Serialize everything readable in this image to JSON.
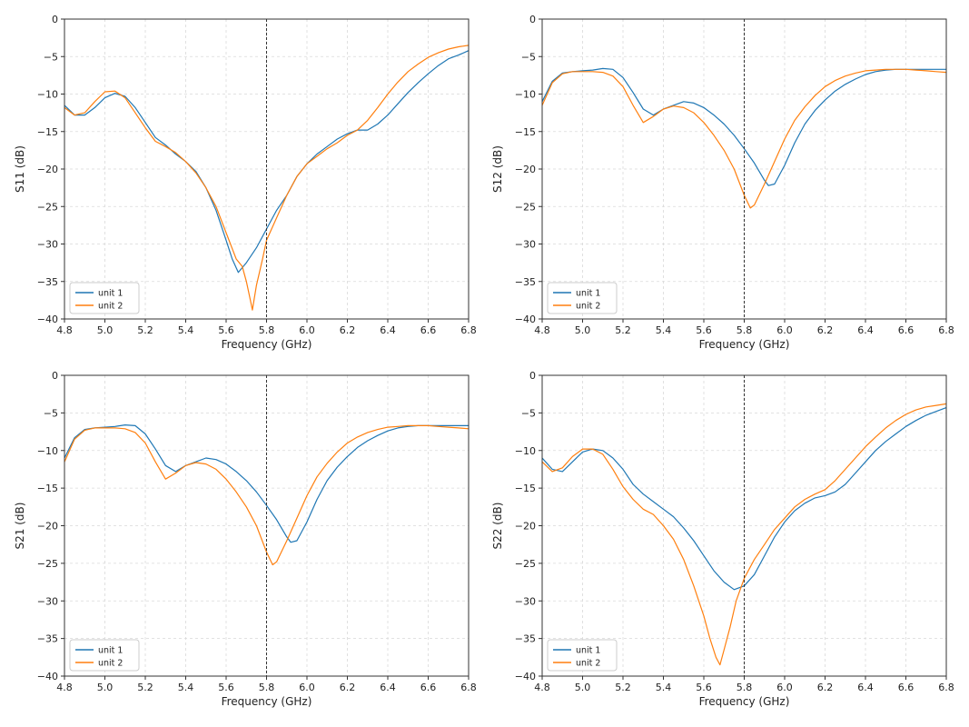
{
  "chart_data": [
    {
      "type": "line",
      "xlabel": "Frequency (GHz)",
      "ylabel": "S11 (dB)",
      "xlim": [
        4.8,
        6.8
      ],
      "ylim": [
        -40,
        0
      ],
      "xticks": [
        4.8,
        5.0,
        5.2,
        5.4,
        5.6,
        5.8,
        6.0,
        6.2,
        6.4,
        6.6,
        6.8
      ],
      "yticks": [
        0,
        -5,
        -10,
        -15,
        -20,
        -25,
        -30,
        -35,
        -40
      ],
      "xtick_labels": [
        "4.8",
        "5.0",
        "5.2",
        "5.4",
        "5.6",
        "5.8",
        "6.0",
        "6.2",
        "6.4",
        "6.6",
        "6.8"
      ],
      "ytick_labels": [
        "0",
        "−5",
        "−10",
        "−15",
        "−20",
        "−25",
        "−30",
        "−35",
        "−40"
      ],
      "grid": true,
      "vline": 5.8,
      "legend_position": "lower-left",
      "series": [
        {
          "name": "unit 1",
          "color": "#1f77b4",
          "x": [
            4.8,
            4.85,
            4.9,
            4.95,
            5.0,
            5.05,
            5.1,
            5.15,
            5.2,
            5.25,
            5.3,
            5.35,
            5.4,
            5.45,
            5.5,
            5.55,
            5.6,
            5.63,
            5.66,
            5.7,
            5.75,
            5.8,
            5.85,
            5.9,
            5.95,
            6.0,
            6.05,
            6.1,
            6.15,
            6.2,
            6.25,
            6.3,
            6.35,
            6.4,
            6.45,
            6.5,
            6.55,
            6.6,
            6.65,
            6.7,
            6.75,
            6.8
          ],
          "y": [
            -11.5,
            -12.8,
            -12.8,
            -11.8,
            -10.5,
            -9.9,
            -10.3,
            -11.8,
            -13.8,
            -15.8,
            -16.8,
            -18.0,
            -19.0,
            -20.3,
            -22.5,
            -25.5,
            -29.5,
            -32.0,
            -33.8,
            -32.5,
            -30.5,
            -28.0,
            -25.5,
            -23.5,
            -21.0,
            -19.3,
            -18.0,
            -17.0,
            -16.0,
            -15.3,
            -14.8,
            -14.8,
            -14.0,
            -12.8,
            -11.3,
            -9.8,
            -8.5,
            -7.3,
            -6.2,
            -5.3,
            -4.8,
            -4.2
          ]
        },
        {
          "name": "unit 2",
          "color": "#ff7f0e",
          "x": [
            4.8,
            4.85,
            4.9,
            4.95,
            5.0,
            5.05,
            5.1,
            5.15,
            5.2,
            5.25,
            5.3,
            5.35,
            5.4,
            5.45,
            5.5,
            5.55,
            5.6,
            5.65,
            5.68,
            5.7,
            5.72,
            5.73,
            5.75,
            5.78,
            5.8,
            5.85,
            5.9,
            5.95,
            6.0,
            6.05,
            6.1,
            6.15,
            6.2,
            6.25,
            6.3,
            6.35,
            6.4,
            6.45,
            6.5,
            6.55,
            6.6,
            6.65,
            6.7,
            6.75,
            6.8
          ],
          "y": [
            -11.8,
            -12.8,
            -12.5,
            -11.0,
            -9.7,
            -9.6,
            -10.5,
            -12.5,
            -14.5,
            -16.3,
            -17.0,
            -17.8,
            -19.0,
            -20.5,
            -22.5,
            -25.0,
            -28.5,
            -32.0,
            -33.0,
            -35.0,
            -37.5,
            -38.8,
            -35.5,
            -32.0,
            -29.5,
            -26.5,
            -23.5,
            -21.0,
            -19.3,
            -18.3,
            -17.3,
            -16.5,
            -15.5,
            -14.8,
            -13.5,
            -11.8,
            -10.0,
            -8.4,
            -7.0,
            -6.0,
            -5.1,
            -4.5,
            -4.0,
            -3.7,
            -3.5
          ]
        }
      ]
    },
    {
      "type": "line",
      "xlabel": "Frequency (GHz)",
      "ylabel": "S12 (dB)",
      "xlim": [
        4.8,
        6.8
      ],
      "ylim": [
        -40,
        0
      ],
      "xticks": [
        4.8,
        5.0,
        5.2,
        5.4,
        5.6,
        5.8,
        6.0,
        6.2,
        6.4,
        6.6,
        6.8
      ],
      "yticks": [
        0,
        -5,
        -10,
        -15,
        -20,
        -25,
        -30,
        -35,
        -40
      ],
      "xtick_labels": [
        "4.8",
        "5.0",
        "5.2",
        "5.4",
        "5.6",
        "5.8",
        "6.0",
        "6.2",
        "6.4",
        "6.6",
        "6.8"
      ],
      "ytick_labels": [
        "0",
        "−5",
        "−10",
        "−15",
        "−20",
        "−25",
        "−30",
        "−35",
        "−40"
      ],
      "grid": true,
      "vline": 5.8,
      "legend_position": "lower-left",
      "series": [
        {
          "name": "unit 1",
          "color": "#1f77b4",
          "x": [
            4.8,
            4.85,
            4.9,
            4.95,
            5.0,
            5.05,
            5.1,
            5.15,
            5.2,
            5.25,
            5.3,
            5.35,
            5.4,
            5.45,
            5.5,
            5.55,
            5.6,
            5.65,
            5.7,
            5.75,
            5.8,
            5.85,
            5.9,
            5.92,
            5.95,
            6.0,
            6.05,
            6.1,
            6.15,
            6.2,
            6.25,
            6.3,
            6.35,
            6.4,
            6.45,
            6.5,
            6.55,
            6.6,
            6.65,
            6.7,
            6.75,
            6.8
          ],
          "y": [
            -11.0,
            -8.3,
            -7.2,
            -7.0,
            -6.9,
            -6.8,
            -6.6,
            -6.7,
            -7.8,
            -9.8,
            -12.0,
            -12.8,
            -12.0,
            -11.5,
            -11.0,
            -11.2,
            -11.8,
            -12.8,
            -14.0,
            -15.5,
            -17.3,
            -19.2,
            -21.5,
            -22.2,
            -22.0,
            -19.5,
            -16.5,
            -14.0,
            -12.2,
            -10.8,
            -9.6,
            -8.7,
            -8.0,
            -7.4,
            -7.0,
            -6.8,
            -6.7,
            -6.7,
            -6.7,
            -6.7,
            -6.7,
            -6.7
          ]
        },
        {
          "name": "unit 2",
          "color": "#ff7f0e",
          "x": [
            4.8,
            4.85,
            4.9,
            4.95,
            5.0,
            5.05,
            5.1,
            5.15,
            5.2,
            5.25,
            5.3,
            5.35,
            5.4,
            5.45,
            5.5,
            5.55,
            5.6,
            5.65,
            5.7,
            5.75,
            5.8,
            5.83,
            5.85,
            5.9,
            5.95,
            6.0,
            6.05,
            6.1,
            6.15,
            6.2,
            6.25,
            6.3,
            6.35,
            6.4,
            6.45,
            6.5,
            6.55,
            6.6,
            6.65,
            6.7,
            6.75,
            6.8
          ],
          "y": [
            -11.5,
            -8.5,
            -7.3,
            -7.0,
            -7.0,
            -7.0,
            -7.1,
            -7.6,
            -9.0,
            -11.5,
            -13.8,
            -13.0,
            -12.0,
            -11.6,
            -11.8,
            -12.5,
            -13.8,
            -15.5,
            -17.5,
            -20.0,
            -23.5,
            -25.2,
            -24.8,
            -22.0,
            -19.0,
            -16.0,
            -13.5,
            -11.7,
            -10.2,
            -9.0,
            -8.2,
            -7.6,
            -7.2,
            -6.9,
            -6.8,
            -6.7,
            -6.7,
            -6.7,
            -6.8,
            -6.9,
            -7.0,
            -7.1
          ]
        }
      ]
    },
    {
      "type": "line",
      "xlabel": "Frequency (GHz)",
      "ylabel": "S21 (dB)",
      "xlim": [
        4.8,
        6.8
      ],
      "ylim": [
        -40,
        0
      ],
      "xticks": [
        4.8,
        5.0,
        5.2,
        5.4,
        5.6,
        5.8,
        6.0,
        6.2,
        6.4,
        6.6,
        6.8
      ],
      "yticks": [
        0,
        -5,
        -10,
        -15,
        -20,
        -25,
        -30,
        -35,
        -40
      ],
      "xtick_labels": [
        "4.8",
        "5.0",
        "5.2",
        "5.4",
        "5.6",
        "5.8",
        "6.0",
        "6.2",
        "6.4",
        "6.6",
        "6.8"
      ],
      "ytick_labels": [
        "0",
        "−5",
        "−10",
        "−15",
        "−20",
        "−25",
        "−30",
        "−35",
        "−40"
      ],
      "grid": true,
      "vline": 5.8,
      "legend_position": "lower-left",
      "series": [
        {
          "name": "unit 1",
          "color": "#1f77b4",
          "x": [
            4.8,
            4.85,
            4.9,
            4.95,
            5.0,
            5.05,
            5.1,
            5.15,
            5.2,
            5.25,
            5.3,
            5.35,
            5.4,
            5.45,
            5.5,
            5.55,
            5.6,
            5.65,
            5.7,
            5.75,
            5.8,
            5.85,
            5.9,
            5.92,
            5.95,
            6.0,
            6.05,
            6.1,
            6.15,
            6.2,
            6.25,
            6.3,
            6.35,
            6.4,
            6.45,
            6.5,
            6.55,
            6.6,
            6.65,
            6.7,
            6.75,
            6.8
          ],
          "y": [
            -11.0,
            -8.3,
            -7.2,
            -7.0,
            -6.9,
            -6.8,
            -6.6,
            -6.7,
            -7.8,
            -9.8,
            -12.0,
            -12.8,
            -12.0,
            -11.5,
            -11.0,
            -11.2,
            -11.8,
            -12.8,
            -14.0,
            -15.5,
            -17.3,
            -19.2,
            -21.5,
            -22.2,
            -22.0,
            -19.5,
            -16.5,
            -14.0,
            -12.2,
            -10.8,
            -9.6,
            -8.7,
            -8.0,
            -7.4,
            -7.0,
            -6.8,
            -6.7,
            -6.7,
            -6.7,
            -6.7,
            -6.7,
            -6.7
          ]
        },
        {
          "name": "unit 2",
          "color": "#ff7f0e",
          "x": [
            4.8,
            4.85,
            4.9,
            4.95,
            5.0,
            5.05,
            5.1,
            5.15,
            5.2,
            5.25,
            5.3,
            5.35,
            5.4,
            5.45,
            5.5,
            5.55,
            5.6,
            5.65,
            5.7,
            5.75,
            5.8,
            5.83,
            5.85,
            5.9,
            5.95,
            6.0,
            6.05,
            6.1,
            6.15,
            6.2,
            6.25,
            6.3,
            6.35,
            6.4,
            6.45,
            6.5,
            6.55,
            6.6,
            6.65,
            6.7,
            6.75,
            6.8
          ],
          "y": [
            -11.5,
            -8.5,
            -7.3,
            -7.0,
            -7.0,
            -7.0,
            -7.1,
            -7.6,
            -9.0,
            -11.5,
            -13.8,
            -13.0,
            -12.0,
            -11.6,
            -11.8,
            -12.5,
            -13.8,
            -15.5,
            -17.5,
            -20.0,
            -23.5,
            -25.2,
            -24.8,
            -22.0,
            -19.0,
            -16.0,
            -13.5,
            -11.7,
            -10.2,
            -9.0,
            -8.2,
            -7.6,
            -7.2,
            -6.9,
            -6.8,
            -6.7,
            -6.7,
            -6.7,
            -6.8,
            -6.9,
            -7.0,
            -7.1
          ]
        }
      ]
    },
    {
      "type": "line",
      "xlabel": "Frequency (GHz)",
      "ylabel": "S22 (dB)",
      "xlim": [
        4.8,
        6.8
      ],
      "ylim": [
        -40,
        0
      ],
      "xticks": [
        4.8,
        5.0,
        5.2,
        5.4,
        5.6,
        5.8,
        6.0,
        6.2,
        6.4,
        6.6,
        6.8
      ],
      "yticks": [
        0,
        -5,
        -10,
        -15,
        -20,
        -25,
        -30,
        -35,
        -40
      ],
      "xtick_labels": [
        "4.8",
        "5.0",
        "5.2",
        "5.4",
        "5.6",
        "5.8",
        "6.0",
        "6.2",
        "6.4",
        "6.6",
        "6.8"
      ],
      "ytick_labels": [
        "0",
        "−5",
        "−10",
        "−15",
        "−20",
        "−25",
        "−30",
        "−35",
        "−40"
      ],
      "grid": true,
      "vline": 5.8,
      "legend_position": "lower-left",
      "series": [
        {
          "name": "unit 1",
          "color": "#1f77b4",
          "x": [
            4.8,
            4.85,
            4.9,
            4.95,
            5.0,
            5.05,
            5.1,
            5.15,
            5.2,
            5.25,
            5.3,
            5.35,
            5.4,
            5.45,
            5.5,
            5.55,
            5.6,
            5.65,
            5.7,
            5.75,
            5.8,
            5.85,
            5.9,
            5.95,
            6.0,
            6.05,
            6.1,
            6.15,
            6.2,
            6.25,
            6.3,
            6.35,
            6.4,
            6.45,
            6.5,
            6.55,
            6.6,
            6.65,
            6.7,
            6.75,
            6.8
          ],
          "y": [
            -11.0,
            -12.5,
            -12.8,
            -11.5,
            -10.2,
            -9.8,
            -10.0,
            -11.0,
            -12.5,
            -14.5,
            -15.8,
            -16.8,
            -17.8,
            -18.8,
            -20.3,
            -22.0,
            -24.0,
            -26.0,
            -27.5,
            -28.5,
            -28.0,
            -26.5,
            -24.0,
            -21.5,
            -19.5,
            -18.0,
            -17.0,
            -16.3,
            -16.0,
            -15.5,
            -14.5,
            -13.0,
            -11.5,
            -10.0,
            -8.8,
            -7.8,
            -6.8,
            -6.0,
            -5.3,
            -4.8,
            -4.3
          ]
        },
        {
          "name": "unit 2",
          "color": "#ff7f0e",
          "x": [
            4.8,
            4.85,
            4.9,
            4.95,
            5.0,
            5.05,
            5.1,
            5.15,
            5.2,
            5.25,
            5.3,
            5.35,
            5.4,
            5.45,
            5.5,
            5.55,
            5.6,
            5.63,
            5.66,
            5.68,
            5.7,
            5.73,
            5.76,
            5.8,
            5.85,
            5.9,
            5.95,
            6.0,
            6.05,
            6.1,
            6.15,
            6.2,
            6.25,
            6.3,
            6.35,
            6.4,
            6.45,
            6.5,
            6.55,
            6.6,
            6.65,
            6.7,
            6.75,
            6.8
          ],
          "y": [
            -11.5,
            -12.8,
            -12.3,
            -10.8,
            -9.8,
            -9.8,
            -10.5,
            -12.5,
            -14.8,
            -16.5,
            -17.8,
            -18.5,
            -20.0,
            -21.8,
            -24.5,
            -28.0,
            -32.0,
            -35.0,
            -37.5,
            -38.5,
            -36.5,
            -33.5,
            -30.0,
            -27.0,
            -24.5,
            -22.5,
            -20.5,
            -19.0,
            -17.5,
            -16.5,
            -15.8,
            -15.2,
            -14.0,
            -12.5,
            -11.0,
            -9.5,
            -8.2,
            -7.0,
            -6.0,
            -5.2,
            -4.6,
            -4.2,
            -4.0,
            -3.8
          ]
        }
      ]
    }
  ]
}
